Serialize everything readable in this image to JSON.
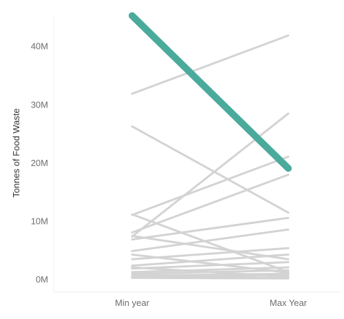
{
  "chart_data": {
    "type": "line",
    "title": "",
    "xlabel": "",
    "ylabel": "Tonnes of Food Waste",
    "categories": [
      "Min year",
      "Max Year"
    ],
    "ylim": [
      0,
      46000000
    ],
    "yticks": [
      0,
      10000000,
      20000000,
      30000000,
      40000000
    ],
    "ytick_labels": [
      "0M",
      "10M",
      "20M",
      "30M",
      "40M"
    ],
    "grid": false,
    "highlight_color": "#4aab9c",
    "other_color": "#d3d3d3",
    "highlight": {
      "values": [
        45200000,
        19000000
      ]
    },
    "series": [
      {
        "values": [
          31800000,
          41800000
        ]
      },
      {
        "values": [
          26200000,
          11400000
        ]
      },
      {
        "values": [
          7300000,
          28400000
        ]
      },
      {
        "values": [
          11000000,
          21000000
        ]
      },
      {
        "values": [
          8000000,
          17900000
        ]
      },
      {
        "values": [
          6800000,
          10500000
        ]
      },
      {
        "values": [
          4800000,
          8500000
        ]
      },
      {
        "values": [
          11100000,
          1200000
        ]
      },
      {
        "values": [
          7400000,
          3400000
        ]
      },
      {
        "values": [
          3400000,
          5300000
        ]
      },
      {
        "values": [
          2300000,
          4200000
        ]
      },
      {
        "values": [
          4200000,
          1100000
        ]
      },
      {
        "values": [
          1800000,
          2900000
        ]
      },
      {
        "values": [
          1200000,
          2000000
        ]
      },
      {
        "values": [
          2000000,
          400000
        ]
      },
      {
        "values": [
          900000,
          1500000
        ]
      },
      {
        "values": [
          600000,
          900000
        ]
      },
      {
        "values": [
          500000,
          200000
        ]
      },
      {
        "values": [
          300000,
          700000
        ]
      },
      {
        "values": [
          200000,
          100000
        ]
      }
    ]
  }
}
